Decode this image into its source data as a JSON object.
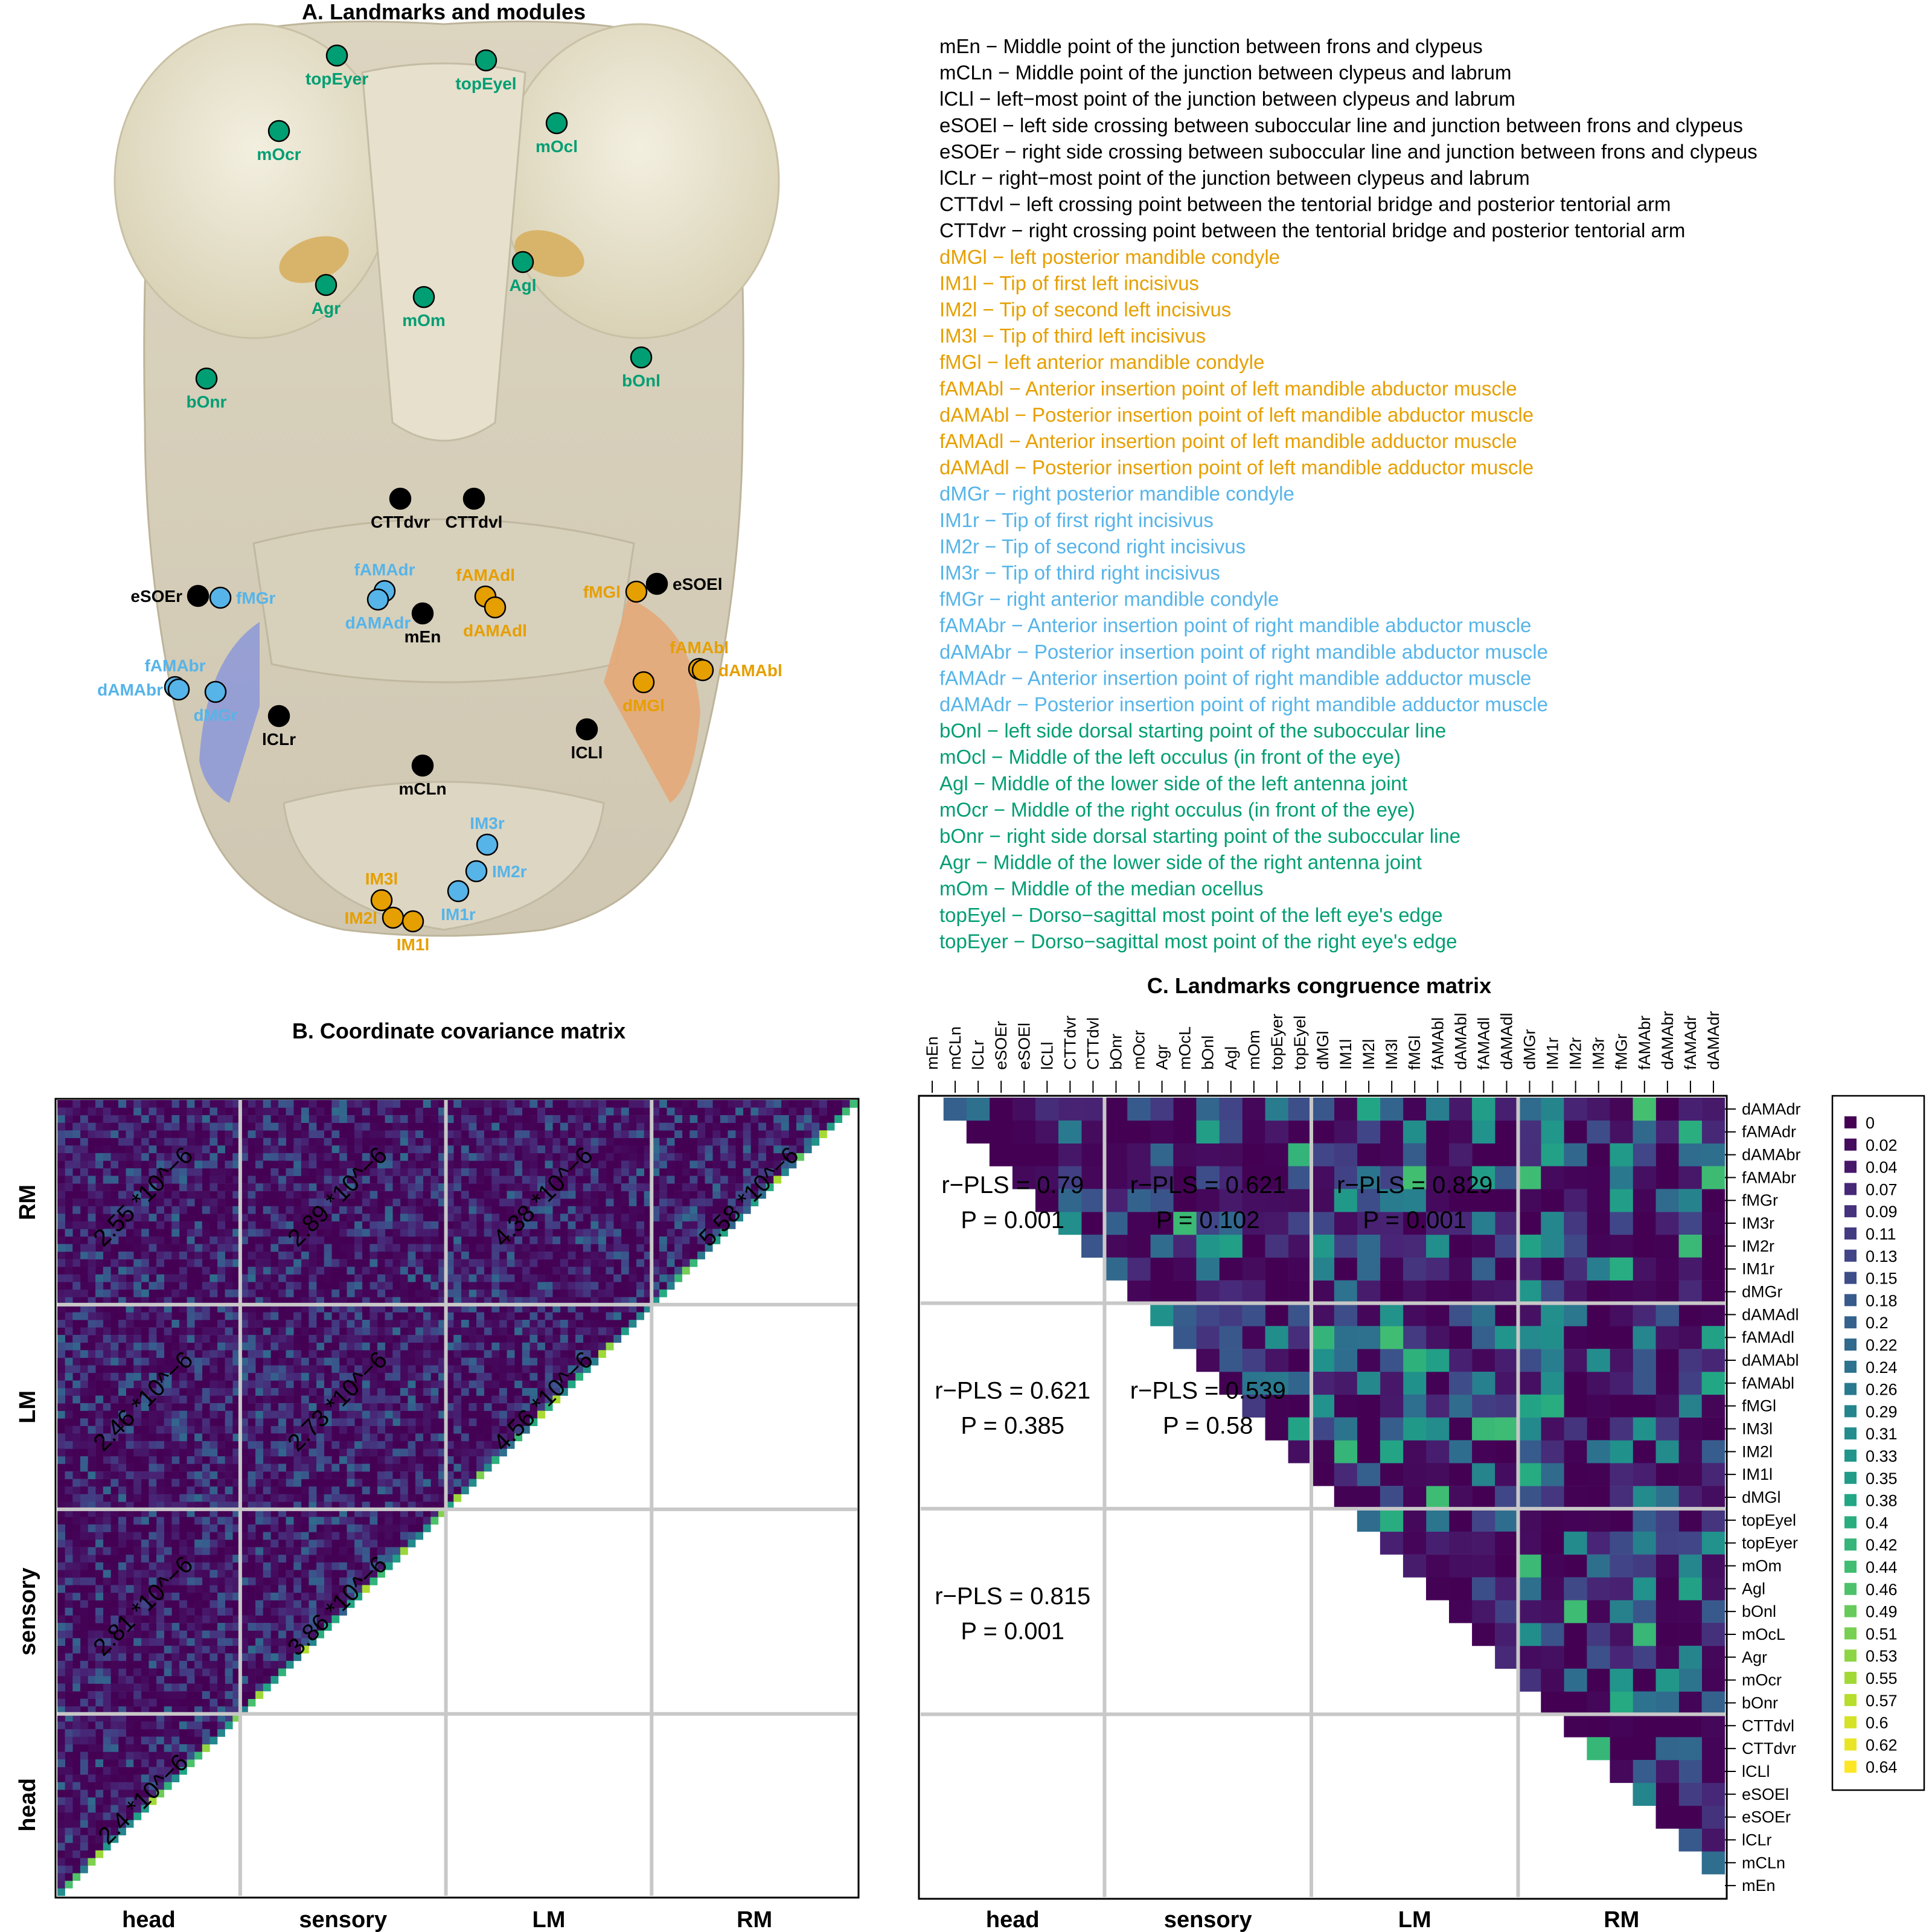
{
  "panel_a": {
    "title": "A. Landmarks and modules",
    "colors": {
      "head": "#000000",
      "lm": "#E69F00",
      "rm": "#56B4E9",
      "sensory": "#009E73"
    },
    "landmarks": [
      {
        "label": "topEyer",
        "module": "sensory"
      },
      {
        "label": "topEyel",
        "module": "sensory"
      },
      {
        "label": "mOcr",
        "module": "sensory"
      },
      {
        "label": "mOcl",
        "module": "sensory"
      },
      {
        "label": "Agr",
        "module": "sensory"
      },
      {
        "label": "Agl",
        "module": "sensory"
      },
      {
        "label": "mOm",
        "module": "sensory"
      },
      {
        "label": "bOnr",
        "module": "sensory"
      },
      {
        "label": "bOnl",
        "module": "sensory"
      },
      {
        "label": "CTTdvr",
        "module": "head"
      },
      {
        "label": "CTTdvl",
        "module": "head"
      },
      {
        "label": "eSOEr",
        "module": "head"
      },
      {
        "label": "eSOEl",
        "module": "head"
      },
      {
        "label": "mEn",
        "module": "head"
      },
      {
        "label": "lCLr",
        "module": "head"
      },
      {
        "label": "lCLl",
        "module": "head"
      },
      {
        "label": "mCLn",
        "module": "head"
      },
      {
        "label": "fAMAdr",
        "module": "rm"
      },
      {
        "label": "dAMAdr",
        "module": "rm"
      },
      {
        "label": "fMGr",
        "module": "rm"
      },
      {
        "label": "fAMAbr",
        "module": "rm"
      },
      {
        "label": "dAMAbr",
        "module": "rm"
      },
      {
        "label": "dMGr",
        "module": "rm"
      },
      {
        "label": "IM3r",
        "module": "rm"
      },
      {
        "label": "IM2r",
        "module": "rm"
      },
      {
        "label": "IM1r",
        "module": "rm"
      },
      {
        "label": "fAMAdl",
        "module": "lm"
      },
      {
        "label": "dAMAdl",
        "module": "lm"
      },
      {
        "label": "fMGl",
        "module": "lm"
      },
      {
        "label": "fAMAbl",
        "module": "lm"
      },
      {
        "label": "dAMAbl",
        "module": "lm"
      },
      {
        "label": "dMGl",
        "module": "lm"
      },
      {
        "label": "IM3l",
        "module": "lm"
      },
      {
        "label": "IM2l",
        "module": "lm"
      },
      {
        "label": "IM1l",
        "module": "lm"
      }
    ],
    "legend": [
      {
        "text": "mEn − Middle point of the junction between frons and clypeus",
        "module": "head"
      },
      {
        "text": "mCLn − Middle point of the junction between clypeus and labrum",
        "module": "head"
      },
      {
        "text": "lCLl − left−most point of the junction between clypeus and labrum",
        "module": "head"
      },
      {
        "text": "eSOEl − left side crossing between suboccular line and junction between frons and clypeus",
        "module": "head"
      },
      {
        "text": "eSOEr − right side crossing between suboccular line and junction between frons and clypeus",
        "module": "head"
      },
      {
        "text": "lCLr − right−most point of the junction between clypeus and labrum",
        "module": "head"
      },
      {
        "text": "CTTdvl − left crossing point between the tentorial bridge and posterior tentorial arm",
        "module": "head"
      },
      {
        "text": "CTTdvr − right crossing point between the tentorial bridge and posterior tentorial arm",
        "module": "head"
      },
      {
        "text": "dMGl − left posterior mandible condyle",
        "module": "lm"
      },
      {
        "text": "IM1l − Tip of first left incisivus",
        "module": "lm"
      },
      {
        "text": "IM2l − Tip of second left incisivus",
        "module": "lm"
      },
      {
        "text": "IM3l − Tip of third left incisivus",
        "module": "lm"
      },
      {
        "text": "fMGl − left anterior mandible condyle",
        "module": "lm"
      },
      {
        "text": "fAMAbl − Anterior insertion point of left mandible abductor muscle",
        "module": "lm"
      },
      {
        "text": "dAMAbl − Posterior insertion point of left mandible abductor muscle",
        "module": "lm"
      },
      {
        "text": "fAMAdl − Anterior insertion point of left mandible adductor muscle",
        "module": "lm"
      },
      {
        "text": "dAMAdl − Posterior insertion point of left mandible adductor muscle",
        "module": "lm"
      },
      {
        "text": "dMGr − right posterior mandible condyle",
        "module": "rm"
      },
      {
        "text": "IM1r − Tip of first right incisivus",
        "module": "rm"
      },
      {
        "text": "IM2r − Tip of second right incisivus",
        "module": "rm"
      },
      {
        "text": "IM3r − Tip of third right incisivus",
        "module": "rm"
      },
      {
        "text": "fMGr − right anterior mandible condyle",
        "module": "rm"
      },
      {
        "text": "fAMAbr − Anterior insertion point of right mandible abductor muscle",
        "module": "rm"
      },
      {
        "text": "dAMAbr − Posterior insertion point of right mandible abductor muscle",
        "module": "rm"
      },
      {
        "text": "fAMAdr − Anterior insertion point of right mandible adductor muscle",
        "module": "rm"
      },
      {
        "text": "dAMAdr − Posterior insertion point of right mandible adductor muscle",
        "module": "rm"
      },
      {
        "text": "bOnl − left side dorsal starting point of the suboccular line",
        "module": "sensory"
      },
      {
        "text": "mOcl − Middle of the left occulus (in front of the eye)",
        "module": "sensory"
      },
      {
        "text": "Agl − Middle of the lower side of the left antenna joint",
        "module": "sensory"
      },
      {
        "text": "mOcr − Middle of the right occulus (in front of the eye)",
        "module": "sensory"
      },
      {
        "text": "bOnr − right side dorsal starting point of the suboccular line",
        "module": "sensory"
      },
      {
        "text": "Agr − Middle of the lower side of the right antenna joint",
        "module": "sensory"
      },
      {
        "text": "mOm − Middle of the median ocellus",
        "module": "sensory"
      },
      {
        "text": "topEyel − Dorso−sagittal most point of the left eye's edge",
        "module": "sensory"
      },
      {
        "text": "topEyer − Dorso−sagittal most point of the right eye's edge",
        "module": "sensory"
      }
    ]
  },
  "chart_data": [
    {
      "type": "heatmap",
      "title": "B. Coordinate covariance matrix",
      "modules": [
        "head",
        "sensory",
        "LM",
        "RM"
      ],
      "x_tick_labels": [
        "head",
        "sensory",
        "LM",
        "RM"
      ],
      "y_tick_labels": [
        "head",
        "sensory",
        "LM",
        "RM"
      ],
      "module_variances": [
        {
          "row": "RM",
          "col": "head",
          "text": "2.55 *10^−6"
        },
        {
          "row": "RM",
          "col": "sensory",
          "text": "2.89 *10^−6"
        },
        {
          "row": "RM",
          "col": "LM",
          "text": "4.38 *10^−6"
        },
        {
          "row": "RM",
          "col": "RM",
          "text": "5.58 *10^−6"
        },
        {
          "row": "LM",
          "col": "head",
          "text": "2.46 *10^−6"
        },
        {
          "row": "LM",
          "col": "sensory",
          "text": "2.73 *10^−6"
        },
        {
          "row": "LM",
          "col": "LM",
          "text": "4.56 *10^−6"
        },
        {
          "row": "sensory",
          "col": "head",
          "text": "2.81 *10^−6"
        },
        {
          "row": "sensory",
          "col": "sensory",
          "text": "3.86 *10^−6"
        },
        {
          "row": "head",
          "col": "head",
          "text": "2.4 *10^−6"
        }
      ],
      "grid": true
    },
    {
      "type": "heatmap",
      "title": "C. Landmarks congruence matrix",
      "column_labels": [
        "mEn",
        "mCLn",
        "lCLr",
        "eSOEr",
        "eSOEl",
        "lCLl",
        "CTTdvr",
        "CTTdvl",
        "bOnr",
        "mOcr",
        "Agr",
        "mOcL",
        "bOnl",
        "Agl",
        "mOm",
        "topEyer",
        "topEyel",
        "dMGl",
        "IM1l",
        "IM2l",
        "IM3l",
        "fMGl",
        "fAMAbl",
        "dAMAbl",
        "fAMAdl",
        "dAMAdl",
        "dMGr",
        "IM1r",
        "IM2r",
        "IM3r",
        "fMGr",
        "fAMAbr",
        "dAMAbr",
        "fAMAdr",
        "dAMAdr"
      ],
      "row_labels": [
        "dAMAdr",
        "fAMAdr",
        "dAMAbr",
        "fAMAbr",
        "fMGr",
        "IM3r",
        "IM2r",
        "IM1r",
        "dMGr",
        "dAMAdl",
        "fAMAdl",
        "dAMAbl",
        "fAMAbl",
        "fMGl",
        "IM3l",
        "IM2l",
        "IM1l",
        "dMGl",
        "topEyel",
        "topEyer",
        "mOm",
        "Agl",
        "bOnl",
        "mOcL",
        "Agr",
        "mOcr",
        "bOnr",
        "CTTdvl",
        "CTTdvr",
        "lCLl",
        "eSOEl",
        "eSOEr",
        "lCLr",
        "mCLn",
        "mEn"
      ],
      "x_tick_labels": [
        "head",
        "sensory",
        "LM",
        "RM"
      ],
      "module_congruence": [
        {
          "row": "RM",
          "col": "head",
          "r_pls": "r−PLS = 0.79",
          "p": "P = 0.001"
        },
        {
          "row": "RM",
          "col": "sensory",
          "r_pls": "r−PLS = 0.621",
          "p": "P = 0.102"
        },
        {
          "row": "RM",
          "col": "LM",
          "r_pls": "r−PLS = 0.829",
          "p": "P = 0.001"
        },
        {
          "row": "LM",
          "col": "head",
          "r_pls": "r−PLS = 0.621",
          "p": "P = 0.385"
        },
        {
          "row": "LM",
          "col": "sensory",
          "r_pls": "r−PLS = 0.539",
          "p": "P = 0.58"
        },
        {
          "row": "sensory",
          "col": "head",
          "r_pls": "r−PLS = 0.815",
          "p": "P = 0.001"
        }
      ],
      "colorbar_labels": [
        "0",
        "0.02",
        "0.04",
        "0.07",
        "0.09",
        "0.11",
        "0.13",
        "0.15",
        "0.18",
        "0.2",
        "0.22",
        "0.24",
        "0.26",
        "0.29",
        "0.31",
        "0.33",
        "0.35",
        "0.38",
        "0.4",
        "0.42",
        "0.44",
        "0.46",
        "0.49",
        "0.51",
        "0.53",
        "0.55",
        "0.57",
        "0.6",
        "0.62",
        "0.64"
      ],
      "value_range": [
        0,
        0.64
      ],
      "legend_position": "right",
      "grid": true
    }
  ]
}
